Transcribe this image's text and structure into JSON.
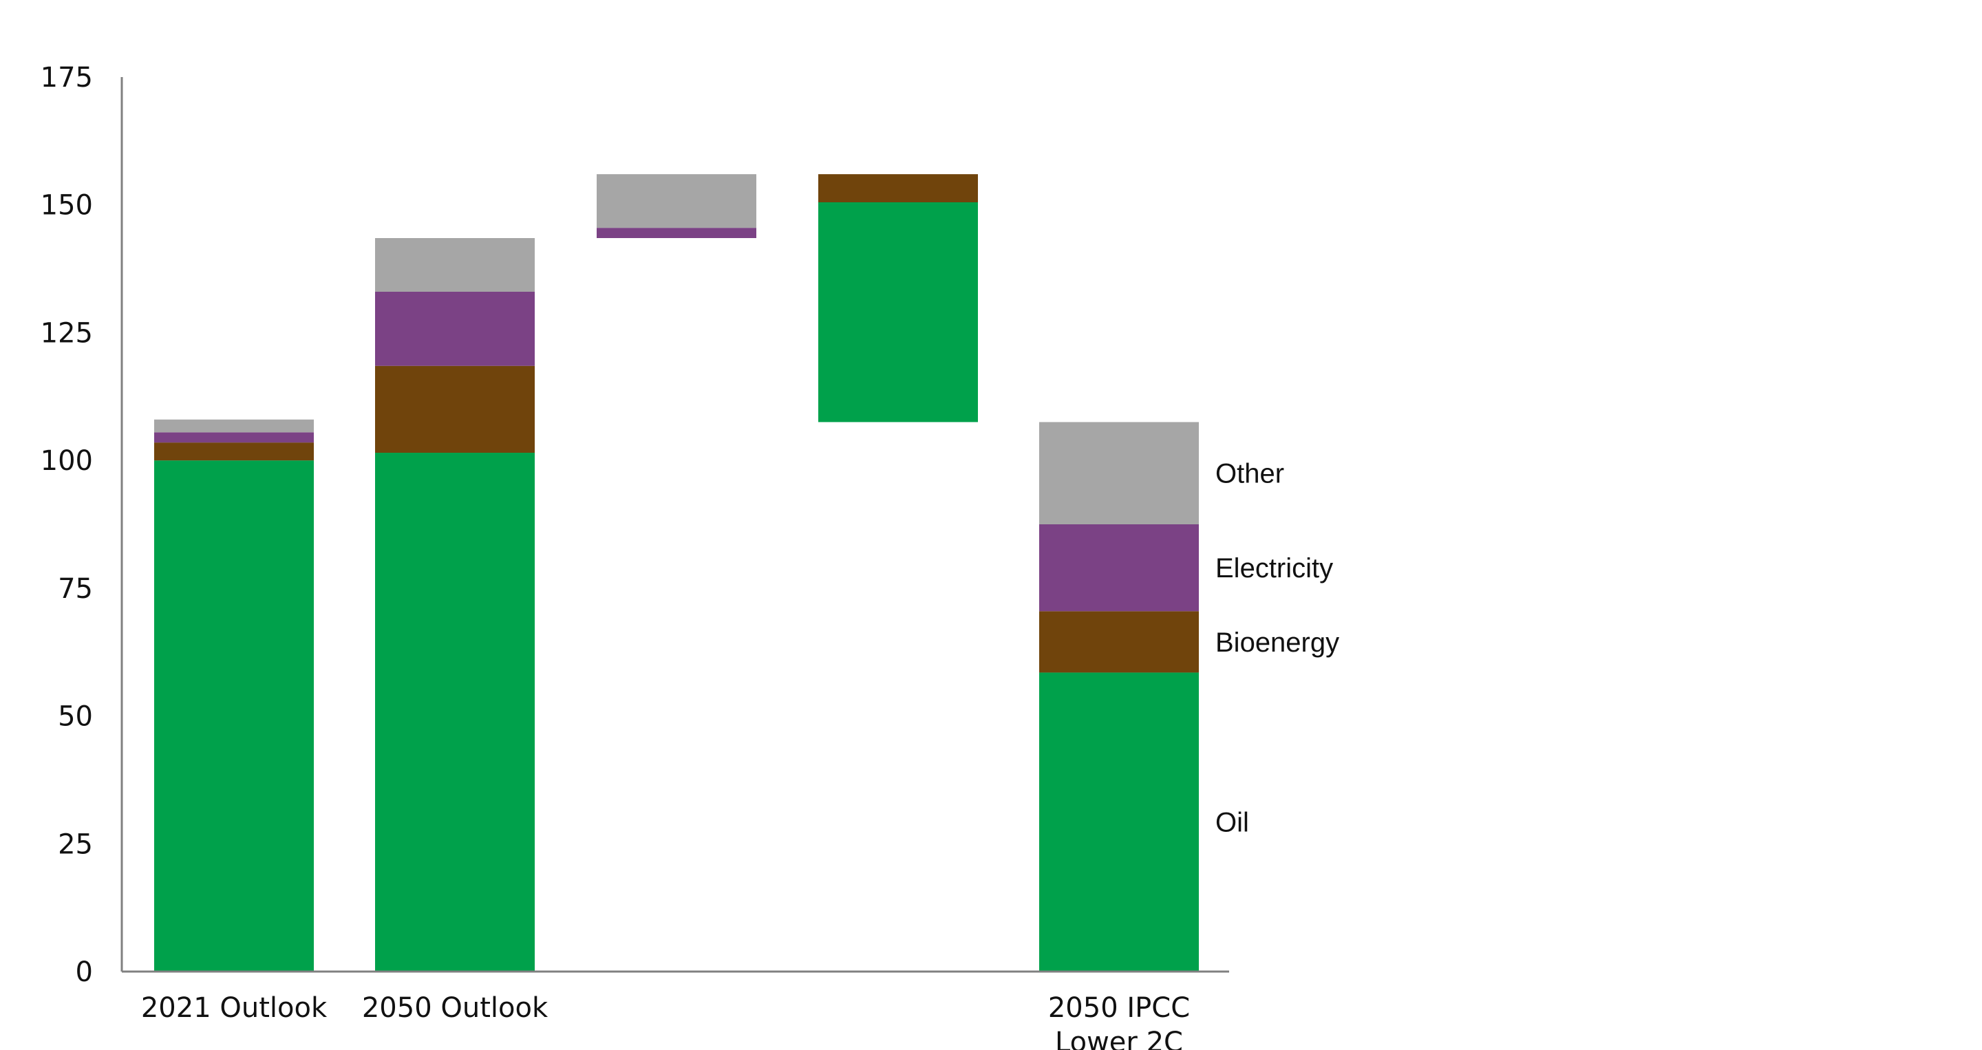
{
  "chart_data": {
    "type": "bar",
    "subtype": "stacked-waterfall",
    "title": "",
    "xlabel": "",
    "ylabel": "",
    "ylim": [
      0,
      175
    ],
    "yticks": [
      0,
      25,
      50,
      75,
      100,
      125,
      150,
      175
    ],
    "grid": false,
    "categories": [
      {
        "lines": [
          "2021 Outlook"
        ]
      },
      {
        "lines": [
          "2050 Outlook"
        ]
      },
      {
        "lines": []
      },
      {
        "lines": []
      },
      {
        "lines": [
          "2050 IPCC",
          "Lower 2C"
        ]
      }
    ],
    "series": [
      {
        "name": "Oil",
        "color": "#00a14b"
      },
      {
        "name": "Bioenergy",
        "color": "#70440c"
      },
      {
        "name": "Electricity",
        "color": "#7b4285"
      },
      {
        "name": "Other",
        "color": "#a6a6a6"
      }
    ],
    "segments": [
      {
        "category": 0,
        "series": "Oil",
        "from": 0,
        "to": 100
      },
      {
        "category": 0,
        "series": "Bioenergy",
        "from": 100,
        "to": 103.5
      },
      {
        "category": 0,
        "series": "Electricity",
        "from": 103.5,
        "to": 105.5
      },
      {
        "category": 0,
        "series": "Other",
        "from": 105.5,
        "to": 108
      },
      {
        "category": 1,
        "series": "Oil",
        "from": 0,
        "to": 101.5
      },
      {
        "category": 1,
        "series": "Bioenergy",
        "from": 101.5,
        "to": 118.5
      },
      {
        "category": 1,
        "series": "Electricity",
        "from": 118.5,
        "to": 133
      },
      {
        "category": 1,
        "series": "Other",
        "from": 133,
        "to": 143.5
      },
      {
        "category": 2,
        "series": "Electricity",
        "from": 143.5,
        "to": 145.5
      },
      {
        "category": 2,
        "series": "Other",
        "from": 145.5,
        "to": 156
      },
      {
        "category": 3,
        "series": "Oil",
        "from": 107.5,
        "to": 150.5
      },
      {
        "category": 3,
        "series": "Bioenergy",
        "from": 150.5,
        "to": 156
      },
      {
        "category": 4,
        "series": "Oil",
        "from": 0,
        "to": 58.5
      },
      {
        "category": 4,
        "series": "Bioenergy",
        "from": 58.5,
        "to": 70.5
      },
      {
        "category": 4,
        "series": "Electricity",
        "from": 70.5,
        "to": 87.5
      },
      {
        "category": 4,
        "series": "Other",
        "from": 87.5,
        "to": 107.5
      }
    ],
    "legend": {
      "placement": "right of last bar",
      "items": [
        "Other",
        "Electricity",
        "Bioenergy",
        "Oil"
      ]
    },
    "axis_color": "#808080"
  }
}
